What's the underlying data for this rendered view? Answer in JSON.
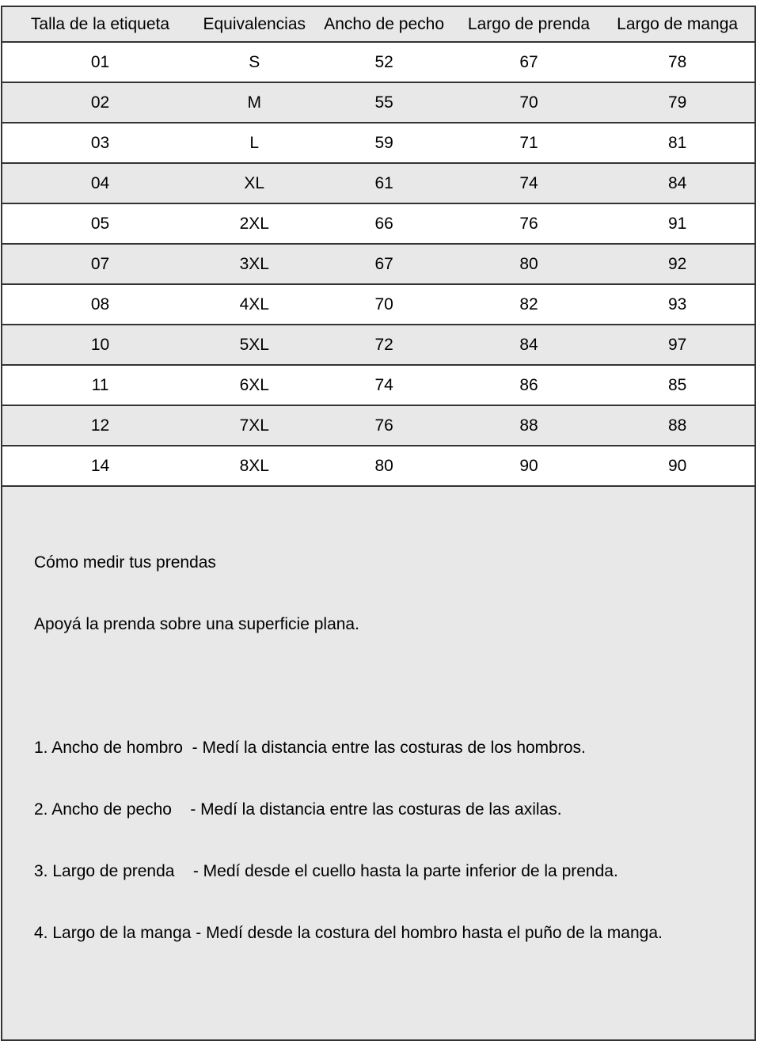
{
  "table": {
    "columns": [
      "Talla de la etiqueta",
      "Equivalencias",
      "Ancho de pecho",
      "Largo de prenda",
      "Largo de manga"
    ],
    "rows": [
      [
        "01",
        "S",
        "52",
        "67",
        "78"
      ],
      [
        "02",
        "M",
        "55",
        "70",
        "79"
      ],
      [
        "03",
        "L",
        "59",
        "71",
        "81"
      ],
      [
        "04",
        "XL",
        "61",
        "74",
        "84"
      ],
      [
        "05",
        "2XL",
        "66",
        "76",
        "91"
      ],
      [
        "07",
        "3XL",
        "67",
        "80",
        "92"
      ],
      [
        "08",
        "4XL",
        "70",
        "82",
        "93"
      ],
      [
        "10",
        "5XL",
        "72",
        "84",
        "97"
      ],
      [
        "11",
        "6XL",
        "74",
        "86",
        "85"
      ],
      [
        "12",
        "7XL",
        "76",
        "88",
        "88"
      ],
      [
        "14",
        "8XL",
        "80",
        "90",
        "90"
      ]
    ]
  },
  "footer": {
    "title": "Cómo medir tus prendas",
    "subtitle": "Apoyá la prenda sobre una superficie plana.",
    "items": [
      "1. Ancho de hombro  - Medí la distancia entre las costuras de los hombros.",
      "2. Ancho de pecho    - Medí la distancia entre las costuras de las axilas.",
      "3. Largo de prenda    - Medí desde el cuello hasta la parte inferior de la prenda.",
      "4. Largo de la manga - Medí desde la costura del hombro hasta el puño de la manga."
    ]
  },
  "colors": {
    "row_alt": "#e8e8e8",
    "border": "#333333"
  }
}
